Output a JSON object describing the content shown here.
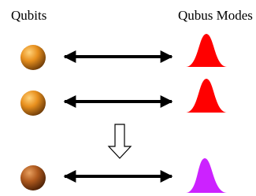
{
  "labels": {
    "left": "Qubits",
    "right": "Qubus Modes"
  }
}
